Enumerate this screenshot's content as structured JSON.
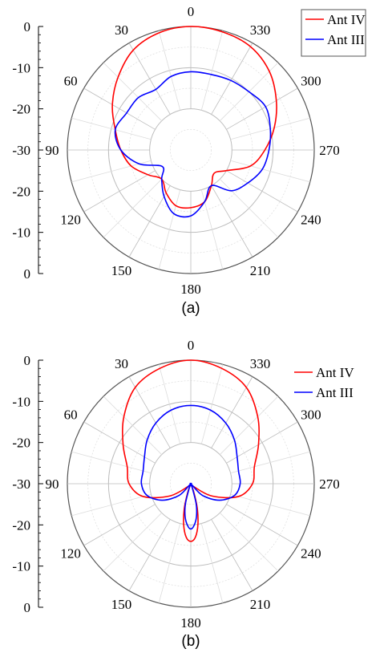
{
  "chart_data": [
    {
      "panel_label": "(a)",
      "type": "line",
      "polar": true,
      "angle_direction": "counterclockwise",
      "zero_direction": "top",
      "r_axis": {
        "min": -30,
        "max": 0,
        "ticks": [
          "0",
          "-10",
          "-20",
          "-30",
          "-20",
          "-10",
          "0"
        ]
      },
      "angle_ticks": [
        "0",
        "30",
        "60",
        "90",
        "120",
        "150",
        "180",
        "210",
        "240",
        "270",
        "300",
        "330"
      ],
      "grid": true,
      "legend_position": "top-right",
      "series": [
        {
          "name": "Ant IV",
          "color": "#ff0000",
          "theta": [
            0,
            15,
            30,
            45,
            60,
            75,
            90,
            105,
            120,
            135,
            150,
            165,
            180,
            195,
            210,
            225,
            240,
            255,
            270,
            285,
            300,
            315,
            330,
            345
          ],
          "r": [
            0,
            -0.5,
            -2,
            -5,
            -8,
            -11,
            -13,
            -15,
            -18,
            -20,
            -18,
            -16,
            -16,
            -17,
            -20,
            -22,
            -20,
            -15,
            -12,
            -9,
            -6,
            -3,
            -1,
            -0.3
          ]
        },
        {
          "name": "Ant III",
          "color": "#0000ff",
          "theta": [
            0,
            15,
            30,
            45,
            60,
            75,
            90,
            105,
            120,
            135,
            150,
            165,
            180,
            195,
            210,
            225,
            240,
            255,
            270,
            285,
            300,
            315,
            330,
            345
          ],
          "r": [
            -11,
            -11.5,
            -13,
            -12,
            -12,
            -11,
            -13,
            -17,
            -22,
            -20,
            -17,
            -14,
            -14,
            -17,
            -20,
            -16,
            -14,
            -12,
            -11,
            -10,
            -9,
            -10,
            -10.5,
            -11
          ]
        }
      ]
    },
    {
      "panel_label": "(b)",
      "type": "line",
      "polar": true,
      "angle_direction": "counterclockwise",
      "zero_direction": "top",
      "r_axis": {
        "min": -30,
        "max": 0,
        "ticks": [
          "0",
          "-10",
          "-20",
          "-30",
          "-20",
          "-10",
          "0"
        ]
      },
      "angle_ticks": [
        "0",
        "30",
        "60",
        "90",
        "120",
        "150",
        "180",
        "210",
        "240",
        "270",
        "300",
        "330"
      ],
      "grid": true,
      "legend_position": "top-right",
      "series": [
        {
          "name": "Ant IV",
          "color": "#ff0000",
          "theta": [
            0,
            15,
            30,
            45,
            60,
            75,
            90,
            105,
            120,
            135,
            150,
            160,
            165,
            170,
            175,
            180,
            185,
            190,
            195,
            200,
            210,
            225,
            240,
            255,
            270,
            285,
            300,
            315,
            330,
            345
          ],
          "r": [
            0,
            -1,
            -3,
            -7,
            -11,
            -14,
            -15,
            -18,
            -24,
            -29,
            -30,
            -28,
            -24,
            -20,
            -17,
            -16,
            -17,
            -20,
            -24,
            -28,
            -30,
            -29,
            -24,
            -18,
            -15,
            -14,
            -11,
            -7,
            -3,
            -1
          ]
        },
        {
          "name": "Ant III",
          "color": "#0000ff",
          "theta": [
            0,
            15,
            30,
            45,
            60,
            75,
            90,
            105,
            120,
            135,
            150,
            160,
            165,
            170,
            175,
            180,
            185,
            190,
            195,
            200,
            210,
            225,
            240,
            255,
            270,
            285,
            300,
            315,
            330,
            345
          ],
          "r": [
            -11,
            -11.5,
            -13,
            -15,
            -17,
            -18,
            -18,
            -19,
            -22,
            -26,
            -30,
            -29,
            -25,
            -22,
            -20,
            -19,
            -20,
            -22,
            -25,
            -29,
            -30,
            -26,
            -22,
            -19,
            -18,
            -18,
            -17,
            -15,
            -13,
            -11.5
          ]
        }
      ]
    }
  ]
}
